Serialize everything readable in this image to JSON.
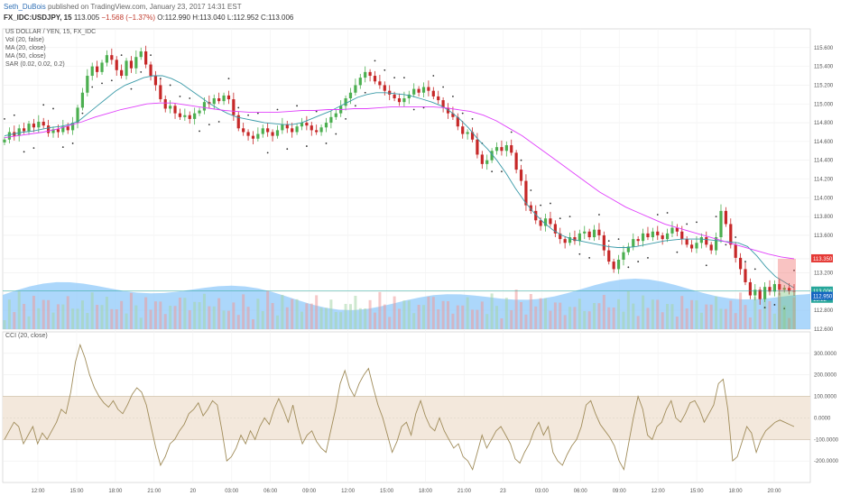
{
  "header": {
    "author": "Seth_DuBois",
    "published": "published on TradingView.com, January 23, 2017 14:31 EST",
    "symbol": "FX_IDC:USDJPY, 15",
    "last": "113.005",
    "change": "−1.568 (−1.37%)",
    "open": "O:112.990",
    "high": "H:113.040",
    "low": "L:112.952",
    "close": "C:113.006"
  },
  "legend": {
    "title": "US DOLLAR / YEN, 15, FX_IDC",
    "vol": "Vol (20, false)",
    "ma20": "MA (20, close)",
    "ma50": "MA (50, close)",
    "sar": "SAR (0.02, 0.02, 0.2)"
  },
  "cci_legend": "CCI (20, close)",
  "price_tags": [
    {
      "text": "113.350",
      "color": "#e53935"
    },
    {
      "text": "113.006",
      "color": "#26a69a"
    },
    {
      "text": "13:22",
      "color": "#26a69a"
    },
    {
      "text": "112.950",
      "color": "#1565c0"
    }
  ],
  "colors": {
    "up": "#4caf50",
    "down": "#c62828",
    "ma20": "#3a9aa8",
    "ma50": "#e040fb",
    "volume": "#90caf9",
    "cci": "#a08c5a",
    "cci_band": "#f3e8dc"
  },
  "chart_data": [
    {
      "type": "candlestick",
      "name": "US DOLLAR / YEN, 15, FX_IDC",
      "ylim": [
        112.6,
        115.8
      ],
      "y_ticks": [
        "115.600",
        "115.400",
        "115.200",
        "115.000",
        "114.800",
        "114.600",
        "114.400",
        "114.200",
        "114.000",
        "113.800",
        "113.600",
        "113.350",
        "113.200",
        "113.000",
        "112.800",
        "112.600"
      ],
      "x_ticks": [
        "12:00",
        "15:00",
        "18:00",
        "21:00",
        "20",
        "03:00",
        "06:00",
        "09:00",
        "12:00",
        "15:00",
        "18:00",
        "21:00",
        "23",
        "03:00",
        "06:00",
        "09:00",
        "12:00",
        "15:00",
        "18:00",
        "20:00"
      ],
      "close": [
        114.62,
        114.7,
        114.66,
        114.74,
        114.71,
        114.79,
        114.75,
        114.81,
        114.77,
        114.69,
        114.73,
        114.7,
        114.76,
        114.72,
        114.8,
        114.96,
        115.12,
        115.3,
        115.4,
        115.34,
        115.44,
        115.52,
        115.47,
        115.36,
        115.3,
        115.46,
        115.38,
        115.5,
        115.56,
        115.42,
        115.3,
        115.2,
        115.05,
        114.95,
        114.98,
        114.9,
        114.86,
        114.88,
        114.84,
        114.9,
        114.93,
        115.02,
        115.0,
        115.06,
        115.03,
        115.09,
        115.05,
        114.88,
        114.74,
        114.7,
        114.66,
        114.63,
        114.68,
        114.74,
        114.7,
        114.66,
        114.72,
        114.78,
        114.74,
        114.7,
        114.76,
        114.8,
        114.77,
        114.72,
        114.7,
        114.75,
        114.8,
        114.86,
        114.9,
        114.98,
        115.06,
        115.12,
        115.2,
        115.28,
        115.34,
        115.3,
        115.24,
        115.2,
        115.14,
        115.1,
        115.06,
        115.02,
        115.06,
        115.1,
        115.16,
        115.12,
        115.18,
        115.14,
        115.08,
        115.04,
        114.96,
        114.9,
        114.86,
        114.76,
        114.68,
        114.7,
        114.62,
        114.46,
        114.36,
        114.4,
        114.5,
        114.54,
        114.5,
        114.56,
        114.48,
        114.3,
        114.18,
        113.92,
        113.86,
        113.76,
        113.7,
        113.78,
        113.72,
        113.62,
        113.56,
        113.52,
        113.58,
        113.54,
        113.62,
        113.64,
        113.58,
        113.66,
        113.6,
        113.44,
        113.32,
        113.24,
        113.34,
        113.42,
        113.48,
        113.56,
        113.54,
        113.62,
        113.58,
        113.64,
        113.6,
        113.56,
        113.62,
        113.68,
        113.64,
        113.56,
        113.5,
        113.46,
        113.52,
        113.58,
        113.5,
        113.44,
        113.58,
        113.86,
        113.72,
        113.5,
        113.36,
        113.24,
        113.1,
        112.96,
        113.02,
        112.92,
        113.05,
        113.0,
        113.08,
        113.02,
        113.04,
        113.01,
        113.006
      ],
      "ma20": [
        114.66,
        114.68,
        114.7,
        114.71,
        114.73,
        114.75,
        114.76,
        114.78,
        114.82,
        114.9,
        114.98,
        115.06,
        115.14,
        115.2,
        115.24,
        115.28,
        115.3,
        115.3,
        115.27,
        115.22,
        115.15,
        115.08,
        115.01,
        114.95,
        114.9,
        114.86,
        114.84,
        114.82,
        114.8,
        114.79,
        114.78,
        114.78,
        114.8,
        114.84,
        114.88,
        114.92,
        114.97,
        115.02,
        115.07,
        115.1,
        115.12,
        115.12,
        115.11,
        115.1,
        115.08,
        115.05,
        115.02,
        114.98,
        114.92,
        114.84,
        114.74,
        114.62,
        114.52,
        114.4,
        114.26,
        114.1,
        113.96,
        113.84,
        113.74,
        113.66,
        113.6,
        113.56,
        113.54,
        113.52,
        113.5,
        113.48,
        113.47,
        113.47,
        113.48,
        113.5,
        113.52,
        113.54,
        113.55,
        113.56,
        113.56,
        113.56,
        113.55,
        113.54,
        113.53,
        113.52,
        113.48,
        113.38,
        113.26,
        113.16,
        113.1,
        113.04
      ],
      "ma50": [
        114.64,
        114.66,
        114.68,
        114.7,
        114.73,
        114.77,
        114.81,
        114.86,
        114.9,
        114.94,
        114.97,
        115.0,
        115.01,
        115.01,
        114.99,
        114.97,
        114.95,
        114.93,
        114.92,
        114.91,
        114.91,
        114.91,
        114.92,
        114.93,
        114.93,
        114.94,
        114.94,
        114.95,
        114.95,
        114.96,
        114.97,
        114.97,
        114.97,
        114.97,
        114.96,
        114.94,
        114.92,
        114.88,
        114.82,
        114.74,
        114.66,
        114.56,
        114.46,
        114.36,
        114.26,
        114.16,
        114.06,
        113.98,
        113.9,
        113.84,
        113.78,
        113.72,
        113.68,
        113.64,
        113.6,
        113.56,
        113.52,
        113.48,
        113.44,
        113.4,
        113.37,
        113.35
      ]
    },
    {
      "type": "line",
      "name": "CCI (20, close)",
      "ylim": [
        -300,
        400
      ],
      "y_ticks": [
        "300.0000",
        "200.0000",
        "100.0000",
        "0.0000",
        "-100.0000",
        "-200.0000"
      ],
      "band": [
        -100,
        100
      ],
      "values": [
        -100,
        -60,
        -20,
        -40,
        -120,
        -80,
        -40,
        -120,
        -70,
        -100,
        -60,
        -20,
        40,
        20,
        120,
        260,
        340,
        280,
        200,
        140,
        100,
        70,
        50,
        80,
        40,
        20,
        60,
        110,
        140,
        120,
        60,
        -40,
        -140,
        -220,
        -180,
        -120,
        -100,
        -60,
        -30,
        20,
        40,
        70,
        10,
        40,
        80,
        60,
        -60,
        -200,
        -180,
        -140,
        -80,
        -120,
        -60,
        -100,
        -40,
        0,
        -30,
        40,
        90,
        40,
        -20,
        60,
        -40,
        -120,
        -80,
        -60,
        -110,
        -140,
        -160,
        -60,
        40,
        160,
        220,
        140,
        100,
        160,
        200,
        230,
        140,
        60,
        0,
        -80,
        -160,
        -110,
        -40,
        -20,
        -80,
        20,
        80,
        10,
        -40,
        -60,
        0,
        -60,
        -100,
        -140,
        -120,
        -180,
        -200,
        -240,
        -160,
        -80,
        -140,
        -100,
        -60,
        -40,
        -80,
        -120,
        -190,
        -210,
        -160,
        -120,
        -60,
        -20,
        -80,
        -40,
        -160,
        -200,
        -220,
        -170,
        -130,
        -100,
        -40,
        60,
        80,
        20,
        -30,
        -60,
        -90,
        -130,
        -200,
        -240,
        -120,
        0,
        100,
        40,
        -80,
        -100,
        -40,
        -20,
        40,
        80,
        0,
        -20,
        20,
        70,
        80,
        40,
        -20,
        20,
        60,
        160,
        180,
        40,
        -200,
        -180,
        -110,
        -40,
        -70,
        -160,
        -100,
        -60,
        -40,
        -20,
        -10,
        -20,
        -30,
        -40
      ]
    }
  ]
}
